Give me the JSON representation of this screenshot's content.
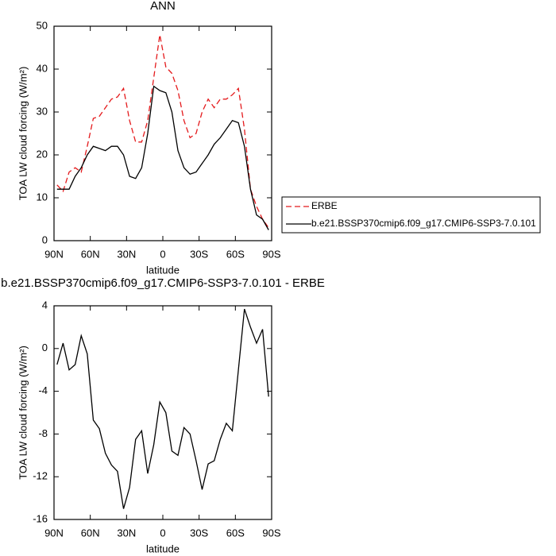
{
  "chart_data": [
    {
      "type": "line",
      "title": "ANN",
      "xlabel": "latitude",
      "ylabel": "TOA LW cloud forcing (W/m²)",
      "x": [
        87.5,
        82.5,
        77.5,
        72.5,
        67.5,
        62.5,
        57.5,
        52.5,
        47.5,
        42.5,
        37.5,
        32.5,
        27.5,
        22.5,
        17.5,
        12.5,
        7.5,
        2.5,
        -2.5,
        -7.5,
        -12.5,
        -17.5,
        -22.5,
        -27.5,
        -32.5,
        -37.5,
        -42.5,
        -47.5,
        -52.5,
        -57.5,
        -62.5,
        -67.5,
        -72.5,
        -77.5,
        -82.5,
        -87.5
      ],
      "series": [
        {
          "name": "ERBE",
          "color": "#e41a1c",
          "dashed": true,
          "values": [
            13,
            11.5,
            16,
            17,
            16,
            22,
            28.5,
            29,
            31,
            33,
            33.5,
            35.5,
            28,
            23,
            23,
            28,
            38,
            48,
            40.5,
            39,
            35,
            28,
            24,
            25,
            30,
            33,
            31,
            33,
            33,
            34,
            35.5,
            26,
            12,
            8,
            5,
            3
          ]
        },
        {
          "name": "b.e21.BSSP370cmip6.f09_g17.CMIP6-SSP3-7.0.101",
          "color": "#000000",
          "dashed": false,
          "values": [
            12,
            12,
            12,
            15,
            17,
            20,
            22,
            21.5,
            21,
            22,
            22,
            20,
            15,
            14.5,
            17,
            25,
            36,
            35,
            34.5,
            30,
            21,
            17,
            15.5,
            16,
            18,
            20,
            22.5,
            24,
            26,
            28,
            27.5,
            22,
            12,
            6,
            5,
            2.5
          ]
        }
      ],
      "xlim": [
        90,
        -90
      ],
      "xticks": [
        {
          "value": 90,
          "label": "90N"
        },
        {
          "value": 60,
          "label": "60N"
        },
        {
          "value": 30,
          "label": "30N"
        },
        0,
        {
          "value": -30,
          "label": "30S"
        },
        {
          "value": -60,
          "label": "60S"
        },
        {
          "value": -90,
          "label": "90S"
        }
      ],
      "ylim": [
        0,
        50
      ],
      "yticks": [
        0,
        10,
        20,
        30,
        40,
        50
      ],
      "legend": "right"
    },
    {
      "type": "line",
      "title": "b.e21.BSSP370cmip6.f09_g17.CMIP6-SSP3-7.0.101 - ERBE",
      "xlabel": "latitude",
      "ylabel": "TOA LW cloud forcing (W/m²)",
      "x": [
        87.5,
        82.5,
        77.5,
        72.5,
        67.5,
        62.5,
        57.5,
        52.5,
        47.5,
        42.5,
        37.5,
        32.5,
        27.5,
        22.5,
        17.5,
        12.5,
        7.5,
        2.5,
        -2.5,
        -7.5,
        -12.5,
        -17.5,
        -22.5,
        -27.5,
        -32.5,
        -37.5,
        -42.5,
        -47.5,
        -52.5,
        -57.5,
        -62.5,
        -67.5,
        -72.5,
        -77.5,
        -82.5,
        -87.5
      ],
      "series": [
        {
          "color": "#000000",
          "dashed": false,
          "values": [
            -1.5,
            0.5,
            -2,
            -1.5,
            1.2,
            -0.5,
            -6.7,
            -7.5,
            -9.8,
            -10.9,
            -11.5,
            -15,
            -13,
            -8.5,
            -7.7,
            -11.7,
            -9,
            -5,
            -6,
            -9.6,
            -10,
            -7.4,
            -8,
            -10.5,
            -13.2,
            -10.8,
            -10.5,
            -8.5,
            -7,
            -7.7,
            -2,
            3.7,
            2,
            0.5,
            1.8,
            -4.5
          ]
        }
      ],
      "xlim": [
        90,
        -90
      ],
      "xticks": [
        {
          "value": 90,
          "label": "90N"
        },
        {
          "value": 60,
          "label": "60N"
        },
        {
          "value": 30,
          "label": "30N"
        },
        0,
        {
          "value": -30,
          "label": "30S"
        },
        {
          "value": -60,
          "label": "60S"
        },
        {
          "value": -90,
          "label": "90S"
        }
      ],
      "ylim": [
        -16,
        4
      ],
      "yticks": [
        -16,
        -12,
        -8,
        -4,
        0,
        4
      ]
    }
  ]
}
